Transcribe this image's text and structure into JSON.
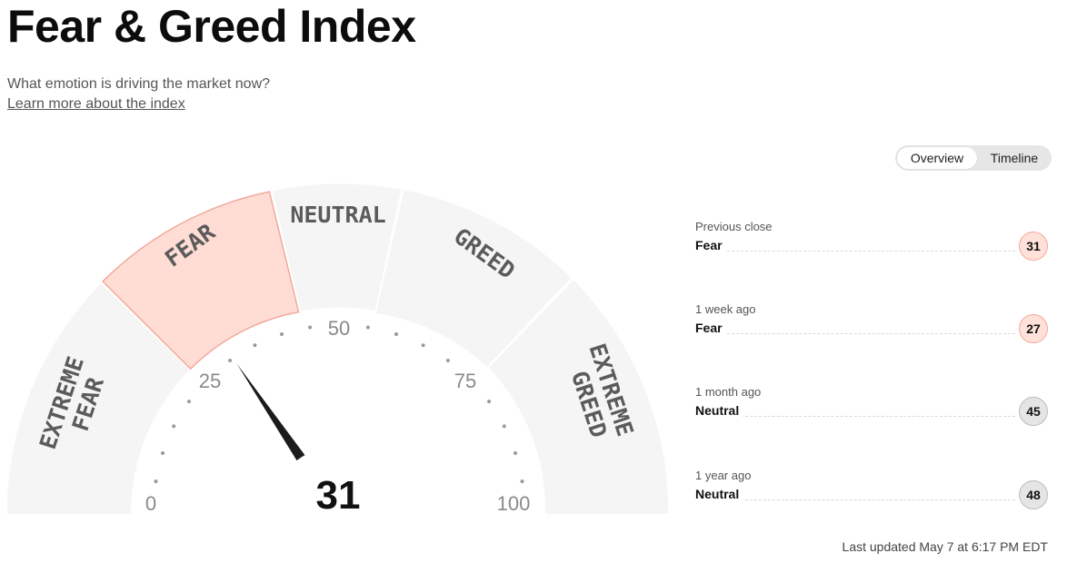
{
  "header": {
    "title": "Fear & Greed Index",
    "subtitle": "What emotion is driving the market now?",
    "learn_more": "Learn more about the index"
  },
  "view_toggle": {
    "options": [
      "Overview",
      "Timeline"
    ],
    "selected": "Overview"
  },
  "gauge": {
    "value": 31,
    "value_display": "31",
    "zones": [
      "EXTREME FEAR",
      "FEAR",
      "NEUTRAL",
      "GREED",
      "EXTREME GREED"
    ],
    "active_zone": "FEAR",
    "tick_labels": [
      "0",
      "25",
      "50",
      "75",
      "100"
    ]
  },
  "history": [
    {
      "period": "Previous close",
      "rating": "Fear",
      "value": "31"
    },
    {
      "period": "1 week ago",
      "rating": "Fear",
      "value": "27"
    },
    {
      "period": "1 month ago",
      "rating": "Neutral",
      "value": "45"
    },
    {
      "period": "1 year ago",
      "rating": "Neutral",
      "value": "48"
    }
  ],
  "footer": {
    "last_updated": "Last updated May 7 at 6:17 PM EDT"
  },
  "colors": {
    "fear_fill": "#ffddd5",
    "fear_stroke": "#f2a99c",
    "segment_fill": "#f5f5f5",
    "neutral_badge": "#e5e5e5",
    "needle": "#1b1b1b"
  }
}
